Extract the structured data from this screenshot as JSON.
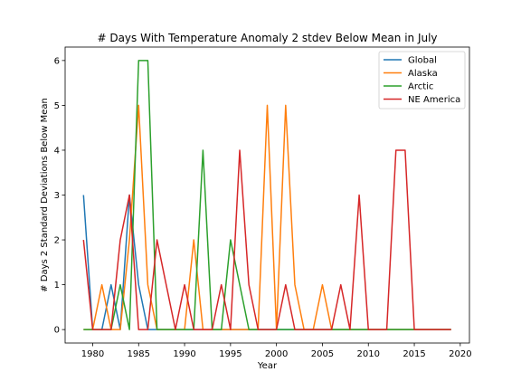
{
  "chart_data": {
    "type": "line",
    "title": "# Days With Temperature Anomaly 2 stdev Below Mean in July",
    "xlabel": "Year",
    "ylabel": "# Days 2 Standard Deviations Below Mean",
    "xlim": [
      1977,
      2021
    ],
    "ylim": [
      -0.3,
      6.3
    ],
    "xticks": [
      "1980",
      "1985",
      "1990",
      "1995",
      "2000",
      "2005",
      "2010",
      "2015",
      "2020"
    ],
    "yticks": [
      "0",
      "1",
      "2",
      "3",
      "4",
      "5",
      "6"
    ],
    "grid": false,
    "legend_position": "top-right",
    "x": [
      1979,
      1980,
      1981,
      1982,
      1983,
      1984,
      1985,
      1986,
      1987,
      1988,
      1989,
      1990,
      1991,
      1992,
      1993,
      1994,
      1995,
      1996,
      1997,
      1998,
      1999,
      2000,
      2001,
      2002,
      2003,
      2004,
      2005,
      2006,
      2007,
      2008,
      2009,
      2010,
      2011,
      2012,
      2013,
      2014,
      2015,
      2016,
      2017,
      2018,
      2019
    ],
    "series": [
      {
        "name": "Global",
        "color": "#1f77b4",
        "values": [
          3,
          0,
          0,
          1,
          0,
          3,
          1,
          0,
          0,
          0,
          0,
          0,
          0,
          0,
          0,
          0,
          0,
          0,
          0,
          0,
          0,
          0,
          0,
          0,
          0,
          0,
          0,
          0,
          0,
          0,
          0,
          0,
          0,
          0,
          0,
          0,
          0,
          0,
          0,
          0,
          0
        ]
      },
      {
        "name": "Alaska",
        "color": "#ff7f0e",
        "values": [
          0,
          0,
          1,
          0,
          0,
          2,
          5,
          1,
          0,
          0,
          0,
          0,
          2,
          0,
          0,
          0,
          0,
          0,
          0,
          0,
          5,
          0,
          5,
          1,
          0,
          0,
          1,
          0,
          0,
          0,
          0,
          0,
          0,
          0,
          0,
          0,
          0,
          0,
          0,
          0,
          0
        ]
      },
      {
        "name": "Arctic",
        "color": "#2ca02c",
        "values": [
          0,
          0,
          0,
          0,
          1,
          0,
          6,
          6,
          0,
          0,
          0,
          0,
          0,
          4,
          0,
          0,
          2,
          1,
          0,
          0,
          0,
          0,
          0,
          0,
          0,
          0,
          0,
          0,
          0,
          0,
          0,
          0,
          0,
          0,
          0,
          0,
          0,
          0,
          0,
          0,
          0
        ]
      },
      {
        "name": "NE America",
        "color": "#d62728",
        "values": [
          2,
          0,
          0,
          0,
          2,
          3,
          0,
          0,
          2,
          1,
          0,
          1,
          0,
          0,
          0,
          1,
          0,
          4,
          1,
          0,
          0,
          0,
          1,
          0,
          0,
          0,
          0,
          0,
          1,
          0,
          3,
          0,
          0,
          0,
          4,
          4,
          0,
          0,
          0,
          0,
          0
        ]
      }
    ]
  }
}
